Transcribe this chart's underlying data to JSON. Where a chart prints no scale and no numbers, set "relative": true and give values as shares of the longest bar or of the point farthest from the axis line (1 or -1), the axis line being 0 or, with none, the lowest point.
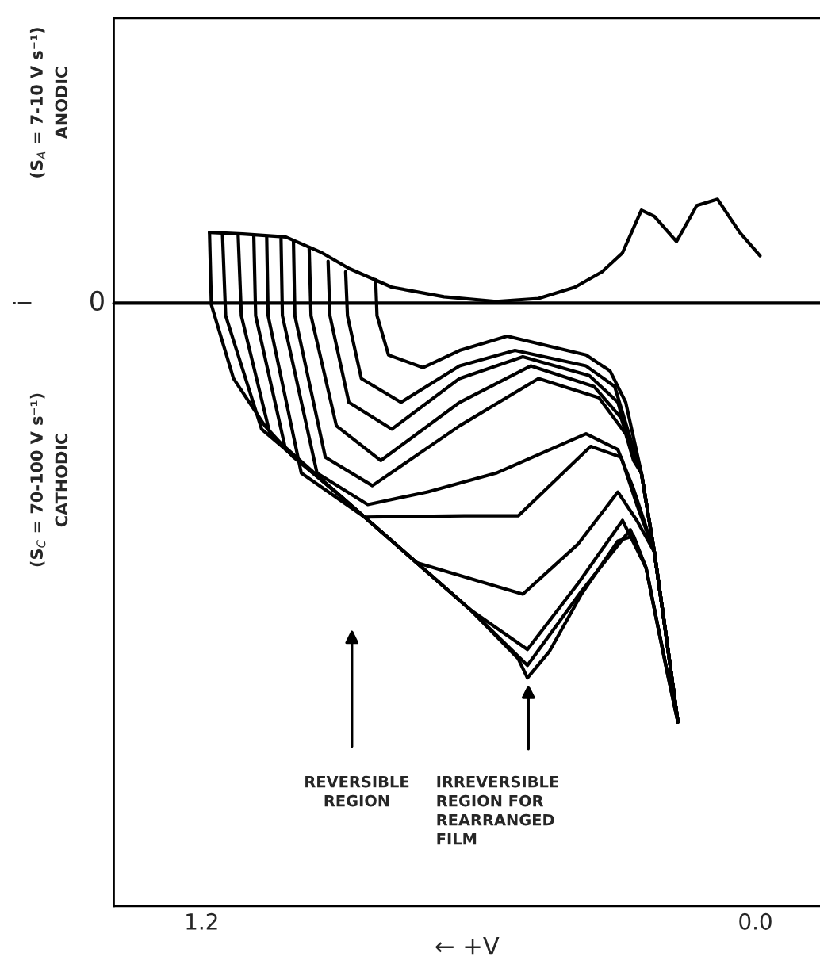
{
  "chart_data": {
    "type": "line",
    "relative": true,
    "xlabel": "← +V",
    "ylabel": "i",
    "xlim": [
      1.39,
      -0.14
    ],
    "xticks": [
      1.2,
      {
        "value": 0,
        "label": "0.0"
      }
    ],
    "ref_lines": [
      {
        "axis": "y",
        "value": 0,
        "label": "0",
        "color": "#000000"
      }
    ],
    "series": [
      {
        "color": "#000000",
        "x": [
          -0.01,
          0.034,
          0.082,
          0.127,
          0.171,
          0.219,
          0.247,
          0.288,
          0.332,
          0.391,
          0.47,
          0.562,
          0.675,
          0.788,
          0.881,
          0.939,
          1.018,
          1.111,
          1.183
        ],
        "values": [
          0.113,
          0.169,
          0.248,
          0.233,
          0.147,
          0.207,
          0.222,
          0.12,
          0.075,
          0.038,
          0.011,
          0.004,
          0.015,
          0.038,
          0.083,
          0.12,
          0.158,
          0.165,
          0.169
        ]
      },
      {
        "color": "#000000",
        "x": [
          0.823,
          0.82,
          0.795,
          0.72,
          0.641,
          0.538,
          0.367,
          0.315,
          0.281,
          0.247,
          0.219,
          0.195,
          0.168
        ],
        "values": [
          0.056,
          -0.03,
          -0.124,
          -0.154,
          -0.113,
          -0.079,
          -0.124,
          -0.162,
          -0.237,
          -0.406,
          -0.594,
          -0.782,
          -1
        ]
      },
      {
        "color": "#000000",
        "x": [
          0.888,
          0.884,
          0.854,
          0.768,
          0.641,
          0.521,
          0.367,
          0.305,
          0.274,
          0.247,
          0.219,
          0.195,
          0.168
        ],
        "values": [
          0.075,
          -0.03,
          -0.18,
          -0.237,
          -0.15,
          -0.113,
          -0.15,
          -0.199,
          -0.312,
          -0.406,
          -0.594,
          -0.782,
          -1
        ]
      },
      {
        "color": "#000000",
        "x": [
          0.926,
          0.922,
          0.881,
          0.788,
          0.641,
          0.504,
          0.36,
          0.298,
          0.264,
          0.247,
          0.219,
          0.195,
          0.168
        ],
        "values": [
          0.1,
          -0.03,
          -0.237,
          -0.301,
          -0.18,
          -0.128,
          -0.173,
          -0.237,
          -0.368,
          -0.406,
          -0.594,
          -0.782,
          -1
        ]
      },
      {
        "color": "#000000",
        "x": [
          0.967,
          0.963,
          0.908,
          0.812,
          0.641,
          0.487,
          0.35,
          0.291,
          0.264,
          0.247,
          0.219,
          0.195,
          0.168
        ],
        "values": [
          0.132,
          -0.03,
          -0.293,
          -0.376,
          -0.237,
          -0.15,
          -0.199,
          -0.274,
          -0.368,
          -0.406,
          -0.594,
          -0.782,
          -1
        ]
      },
      {
        "color": "#000000",
        "x": [
          1.001,
          0.998,
          0.932,
          0.83,
          0.641,
          0.47,
          0.339,
          0.281,
          0.264,
          0.247,
          0.219,
          0.195,
          0.168
        ],
        "values": [
          0.147,
          -0.03,
          -0.368,
          -0.436,
          -0.293,
          -0.18,
          -0.226,
          -0.312,
          -0.376,
          -0.406,
          -0.594,
          -0.782,
          -1
        ]
      },
      {
        "color": "#000000",
        "x": [
          1.028,
          1.025,
          0.95,
          0.84,
          0.71,
          0.562,
          0.367,
          0.298,
          0.264,
          0.219,
          0.195,
          0.168
        ],
        "values": [
          0.154,
          -0.03,
          -0.406,
          -0.481,
          -0.451,
          -0.406,
          -0.312,
          -0.35,
          -0.444,
          -0.594,
          -0.782,
          -1
        ]
      },
      {
        "color": "#000000",
        "x": [
          1.059,
          1.056,
          0.984,
          0.847,
          0.631,
          0.514,
          0.357,
          0.291,
          0.257,
          0.219,
          0.195,
          0.168
        ],
        "values": [
          0.158,
          -0.03,
          -0.406,
          -0.511,
          -0.508,
          -0.508,
          -0.342,
          -0.368,
          -0.481,
          -0.594,
          -0.782,
          -1
        ]
      },
      {
        "color": "#000000",
        "x": [
          1.087,
          1.083,
          1.018,
          0.847,
          0.734,
          0.504,
          0.384,
          0.298,
          0.257,
          0.219,
          0.195,
          0.168
        ],
        "values": [
          0.161,
          -0.03,
          -0.35,
          -0.511,
          -0.62,
          -0.695,
          -0.575,
          -0.451,
          -0.519,
          -0.594,
          -0.782,
          -1
        ]
      },
      {
        "color": "#000000",
        "x": [
          1.121,
          1.114,
          1.052,
          0.905,
          0.734,
          0.617,
          0.494,
          0.384,
          0.288,
          0.237,
          0.213,
          0.192,
          0.168
        ],
        "values": [
          0.165,
          -0.03,
          -0.312,
          -0.455,
          -0.62,
          -0.733,
          -0.827,
          -0.669,
          -0.519,
          -0.632,
          -0.763,
          -0.876,
          -1
        ]
      },
      {
        "color": "#000000",
        "x": [
          1.155,
          1.148,
          1.07,
          0.905,
          0.734,
          0.617,
          0.494,
          0.377,
          0.271,
          0.237,
          0.213,
          0.192,
          0.168
        ],
        "values": [
          0.169,
          -0.03,
          -0.301,
          -0.455,
          -0.62,
          -0.733,
          -0.865,
          -0.688,
          -0.541,
          -0.632,
          -0.763,
          -0.876,
          -1
        ]
      },
      {
        "color": "#000000",
        "x": [
          1.183,
          1.179,
          1.131,
          1.063,
          1.001,
          0.905,
          0.734,
          0.617,
          0.514,
          0.494,
          0.446,
          0.377,
          0.298,
          0.264,
          0.237,
          0.213,
          0.192,
          0.168
        ],
        "values": [
          0.169,
          -0.004,
          -0.18,
          -0.293,
          -0.368,
          -0.455,
          -0.62,
          -0.733,
          -0.849,
          -0.895,
          -0.831,
          -0.695,
          -0.568,
          -0.556,
          -0.632,
          -0.763,
          -0.876,
          -1
        ]
      }
    ],
    "annotations": [
      "(S$_{A}$ = 7-10 V s⁻¹)\nANODIC",
      "(S$_{C}$ = 70-100 V s⁻¹)\nCATHODIC",
      "REVERSIBLE\nREGION",
      "IRREVERSIBLE\nREGION FOR\nREARRANGED\nFILM"
    ]
  }
}
